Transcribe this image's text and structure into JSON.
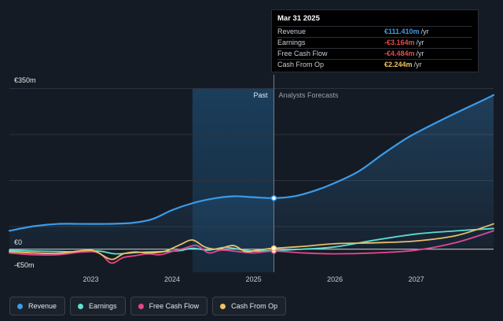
{
  "chart_data": {
    "type": "line",
    "title": "",
    "xlabel": "",
    "ylabel": "",
    "y_tick_labels": [
      "€350m",
      "€0",
      "-€50m"
    ],
    "ylim": [
      -50,
      350
    ],
    "xlim": [
      2022.0,
      2027.95
    ],
    "x_tick_labels": [
      "2023",
      "2024",
      "2025",
      "2026",
      "2027"
    ],
    "x_ticks": [
      2023,
      2024,
      2025,
      2026,
      2027
    ],
    "divider_x": 2025.25,
    "past_start_x": 2024.25,
    "region_labels": {
      "past": "Past",
      "forecast": "Analysts Forecasts"
    },
    "series": [
      {
        "name": "Revenue",
        "color": "#3b9be8",
        "fill": true,
        "x": [
          2022.0,
          2022.3,
          2022.6,
          2022.9,
          2023.2,
          2023.5,
          2023.75,
          2024.0,
          2024.25,
          2024.5,
          2024.75,
          2025.0,
          2025.25,
          2025.5,
          2025.75,
          2026.0,
          2026.3,
          2026.6,
          2026.9,
          2027.2,
          2027.5,
          2027.8,
          2027.95
        ],
        "values": [
          40,
          50,
          55,
          55,
          55,
          57,
          65,
          85,
          100,
          110,
          115,
          113,
          111,
          115,
          127,
          144,
          170,
          208,
          243,
          271,
          297,
          322,
          335
        ]
      },
      {
        "name": "Earnings",
        "color": "#5fe0d0",
        "fill": false,
        "x": [
          2022.0,
          2022.3,
          2022.6,
          2022.9,
          2023.1,
          2023.3,
          2023.5,
          2023.7,
          2023.9,
          2024.1,
          2024.25,
          2024.45,
          2024.65,
          2024.85,
          2025.0,
          2025.25,
          2025.6,
          2026.0,
          2026.5,
          2027.0,
          2027.5,
          2027.95
        ],
        "values": [
          -2,
          -4,
          -5,
          -6,
          -4,
          -10,
          -8,
          -6,
          -5,
          -3,
          2,
          -2,
          4,
          -1,
          -4,
          -3,
          0,
          5,
          20,
          33,
          40,
          45
        ]
      },
      {
        "name": "Free Cash Flow",
        "color": "#e5458f",
        "fill": false,
        "x": [
          2022.0,
          2022.3,
          2022.6,
          2022.9,
          2023.1,
          2023.25,
          2023.4,
          2023.55,
          2023.7,
          2023.85,
          2024.0,
          2024.15,
          2024.3,
          2024.45,
          2024.6,
          2024.8,
          2025.0,
          2025.25,
          2025.6,
          2026.0,
          2026.5,
          2027.0,
          2027.5,
          2027.95
        ],
        "values": [
          -8,
          -12,
          -12,
          -6,
          -8,
          -30,
          -18,
          -14,
          -10,
          -12,
          -5,
          2,
          8,
          -8,
          -2,
          -5,
          -8,
          -4,
          -8,
          -10,
          -8,
          -2,
          15,
          40
        ]
      },
      {
        "name": "Cash From Op",
        "color": "#f2c261",
        "fill": false,
        "x": [
          2022.0,
          2022.3,
          2022.6,
          2022.9,
          2023.05,
          2023.25,
          2023.4,
          2023.55,
          2023.7,
          2023.9,
          2024.1,
          2024.25,
          2024.4,
          2024.55,
          2024.75,
          2024.9,
          2025.05,
          2025.25,
          2025.6,
          2026.0,
          2026.5,
          2027.0,
          2027.5,
          2027.95
        ],
        "values": [
          -5,
          -8,
          -9,
          -3,
          -4,
          -22,
          -10,
          -6,
          -8,
          -5,
          10,
          20,
          5,
          0,
          8,
          -5,
          -2,
          2,
          6,
          12,
          14,
          18,
          30,
          55
        ]
      }
    ]
  },
  "tooltip": {
    "date": "Mar 31 2025",
    "rows": [
      {
        "label": "Revenue",
        "value": "€111.410m",
        "unit": "/yr",
        "color": "#3b9be8"
      },
      {
        "label": "Earnings",
        "value": "-€3.164m",
        "unit": "/yr",
        "color": "#e54b4b"
      },
      {
        "label": "Free Cash Flow",
        "value": "-€4.484m",
        "unit": "/yr",
        "color": "#e54b4b"
      },
      {
        "label": "Cash From Op",
        "value": "€2.244m",
        "unit": "/yr",
        "color": "#f2c261"
      }
    ]
  },
  "legend": [
    {
      "label": "Revenue",
      "color": "#3b9be8"
    },
    {
      "label": "Earnings",
      "color": "#5fe0d0"
    },
    {
      "label": "Free Cash Flow",
      "color": "#e5458f"
    },
    {
      "label": "Cash From Op",
      "color": "#f2c261"
    }
  ]
}
